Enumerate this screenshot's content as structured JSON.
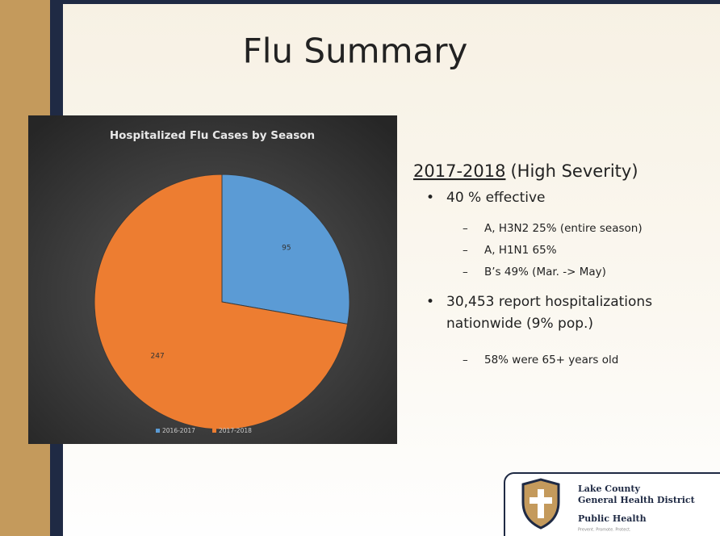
{
  "slide": {
    "title": "Flu Summary",
    "heading": {
      "period": "2017-2018",
      "severity": "(High Severity)"
    },
    "bullets": [
      {
        "text": "40 % effective",
        "subitems": [
          "A, H3N2 25% (entire season)",
          "A, H1N1 65%",
          "B’s 49% (Mar. -> May)"
        ]
      },
      {
        "text": "30,453 report hospitalizations nationwide (9% pop.)",
        "subitems": [
          "58% were 65+ years old"
        ]
      }
    ]
  },
  "chart_data": {
    "type": "pie",
    "title": "Hospitalized Flu Cases by Season",
    "categories": [
      "2016-2017",
      "2017-2018"
    ],
    "values": [
      95,
      247
    ],
    "colors": [
      "#5b9bd5",
      "#ed7d31"
    ],
    "legend": "bottom"
  },
  "logo": {
    "line1": "Lake County",
    "line2": "General Health District",
    "line3": "Public Health",
    "tagline": "Prevent. Promote. Protect."
  }
}
